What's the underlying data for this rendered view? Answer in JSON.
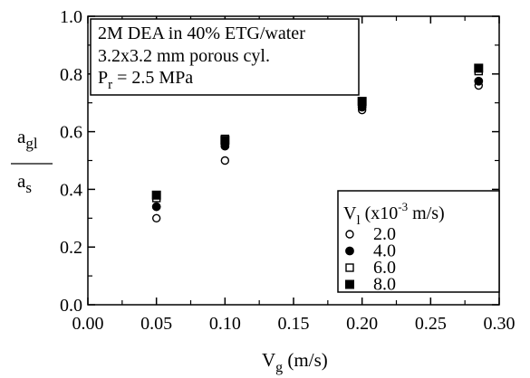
{
  "chart_data": {
    "type": "scatter",
    "xlabel": {
      "main": "V",
      "sub": "g",
      "unit": " (m/s)"
    },
    "ylabel": {
      "num_main": "a",
      "num_sub": "gl",
      "den_main": "a",
      "den_sub": "s"
    },
    "xlim": [
      0.0,
      0.3
    ],
    "ylim": [
      0.0,
      1.0
    ],
    "x_ticks": [
      "0.00",
      "0.05",
      "0.10",
      "0.15",
      "0.20",
      "0.25",
      "0.30"
    ],
    "y_ticks": [
      "0.0",
      "0.2",
      "0.4",
      "0.6",
      "0.8",
      "1.0"
    ],
    "annotation": {
      "line1": "2M DEA in 40% ETG/water",
      "line2": "3.2x3.2 mm porous cyl.",
      "line3_main": "P",
      "line3_sub": "r",
      "line3_rest": " = 2.5 MPa"
    },
    "legend": {
      "title_main": "V",
      "title_sub": "l",
      "title_open": " (x10",
      "title_exp": "-3",
      "title_close": " m/s)",
      "placement": "right"
    },
    "series": [
      {
        "name": "2.0",
        "marker": "open-circle",
        "x": [
          0.05,
          0.1,
          0.2,
          0.285
        ],
        "y": [
          0.3,
          0.5,
          0.675,
          0.76
        ]
      },
      {
        "name": "4.0",
        "marker": "filled-circle",
        "x": [
          0.05,
          0.1,
          0.2,
          0.285
        ],
        "y": [
          0.34,
          0.55,
          0.685,
          0.775
        ]
      },
      {
        "name": "6.0",
        "marker": "open-square",
        "x": [
          0.05,
          0.1,
          0.2,
          0.285
        ],
        "y": [
          0.37,
          0.575,
          0.7,
          0.81
        ]
      },
      {
        "name": "8.0",
        "marker": "filled-square",
        "x": [
          0.05,
          0.1,
          0.2,
          0.285
        ],
        "y": [
          0.38,
          0.57,
          0.705,
          0.82
        ]
      }
    ]
  }
}
